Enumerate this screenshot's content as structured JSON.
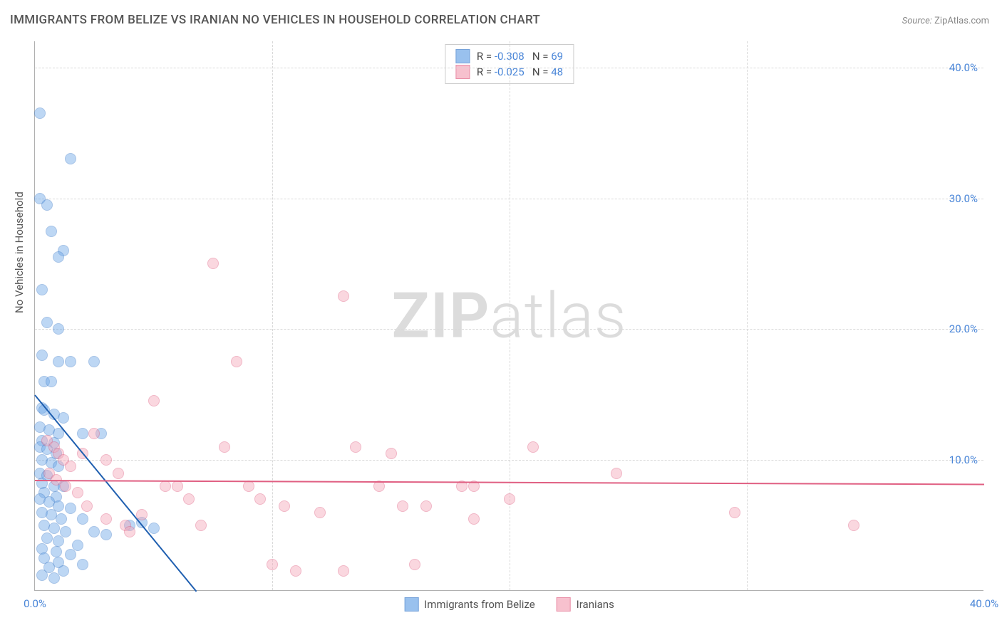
{
  "title": "IMMIGRANTS FROM BELIZE VS IRANIAN NO VEHICLES IN HOUSEHOLD CORRELATION CHART",
  "source_label": "Source:",
  "source_value": "ZipAtlas.com",
  "ylabel": "No Vehicles in Household",
  "watermark_bold": "ZIP",
  "watermark_light": "atlas",
  "chart": {
    "type": "scatter",
    "background_color": "#ffffff",
    "grid_color": "#d8d8d8",
    "axis_color": "#b0b0b0",
    "tick_color": "#4a86d8",
    "xlim": [
      0,
      40
    ],
    "ylim": [
      0,
      42
    ],
    "xtick_step": 10,
    "ytick_step": 10,
    "xticks": [
      "0.0%",
      "40.0%"
    ],
    "yticks": [
      "10.0%",
      "20.0%",
      "30.0%",
      "40.0%"
    ],
    "marker_radius": 8,
    "marker_opacity": 0.45,
    "marker_stroke_opacity": 0.7,
    "series": [
      {
        "name": "Immigrants from Belize",
        "color": "#6fa8e8",
        "stroke": "#3d7cc9",
        "trend_color": "#1f5fb0",
        "R": "-0.308",
        "N": "69",
        "trend": {
          "x1": 0,
          "y1": 15.0,
          "x2": 6.8,
          "y2": 0
        },
        "points": [
          [
            0.2,
            36.5
          ],
          [
            1.5,
            33.0
          ],
          [
            0.2,
            30.0
          ],
          [
            0.5,
            29.5
          ],
          [
            0.7,
            27.5
          ],
          [
            1.2,
            26.0
          ],
          [
            1.0,
            25.5
          ],
          [
            0.3,
            23.0
          ],
          [
            0.5,
            20.5
          ],
          [
            1.0,
            20.0
          ],
          [
            0.3,
            18.0
          ],
          [
            1.0,
            17.5
          ],
          [
            1.5,
            17.5
          ],
          [
            2.5,
            17.5
          ],
          [
            0.4,
            16.0
          ],
          [
            0.7,
            16.0
          ],
          [
            0.3,
            14.0
          ],
          [
            0.4,
            13.8
          ],
          [
            0.8,
            13.5
          ],
          [
            1.2,
            13.2
          ],
          [
            0.2,
            12.5
          ],
          [
            0.6,
            12.3
          ],
          [
            1.0,
            12.0
          ],
          [
            2.0,
            12.0
          ],
          [
            2.8,
            12.0
          ],
          [
            0.3,
            11.5
          ],
          [
            0.8,
            11.3
          ],
          [
            0.2,
            11.0
          ],
          [
            0.5,
            10.8
          ],
          [
            0.9,
            10.5
          ],
          [
            0.3,
            10.0
          ],
          [
            0.7,
            9.8
          ],
          [
            1.0,
            9.5
          ],
          [
            0.2,
            9.0
          ],
          [
            0.5,
            8.8
          ],
          [
            0.3,
            8.2
          ],
          [
            0.8,
            8.0
          ],
          [
            1.2,
            8.0
          ],
          [
            0.4,
            7.5
          ],
          [
            0.9,
            7.2
          ],
          [
            0.2,
            7.0
          ],
          [
            0.6,
            6.8
          ],
          [
            1.0,
            6.5
          ],
          [
            1.5,
            6.3
          ],
          [
            0.3,
            6.0
          ],
          [
            0.7,
            5.8
          ],
          [
            1.1,
            5.5
          ],
          [
            2.0,
            5.5
          ],
          [
            0.4,
            5.0
          ],
          [
            0.8,
            4.8
          ],
          [
            1.3,
            4.5
          ],
          [
            2.5,
            4.5
          ],
          [
            3.0,
            4.3
          ],
          [
            0.5,
            4.0
          ],
          [
            1.0,
            3.8
          ],
          [
            1.8,
            3.5
          ],
          [
            0.3,
            3.2
          ],
          [
            0.9,
            3.0
          ],
          [
            1.5,
            2.8
          ],
          [
            0.4,
            2.5
          ],
          [
            1.0,
            2.2
          ],
          [
            2.0,
            2.0
          ],
          [
            0.6,
            1.8
          ],
          [
            1.2,
            1.5
          ],
          [
            0.3,
            1.2
          ],
          [
            0.8,
            1.0
          ],
          [
            4.0,
            5.0
          ],
          [
            4.5,
            5.2
          ],
          [
            5.0,
            4.8
          ]
        ]
      },
      {
        "name": "Iranians",
        "color": "#f4a8ba",
        "stroke": "#e05f82",
        "trend_color": "#e05f82",
        "R": "-0.025",
        "N": "48",
        "trend": {
          "x1": 0,
          "y1": 8.5,
          "x2": 40,
          "y2": 8.2
        },
        "points": [
          [
            0.5,
            11.5
          ],
          [
            0.8,
            11.0
          ],
          [
            1.0,
            10.5
          ],
          [
            1.2,
            10.0
          ],
          [
            1.5,
            9.5
          ],
          [
            0.6,
            9.0
          ],
          [
            0.9,
            8.5
          ],
          [
            1.3,
            8.0
          ],
          [
            2.5,
            12.0
          ],
          [
            2.0,
            10.5
          ],
          [
            3.0,
            10.0
          ],
          [
            3.5,
            9.0
          ],
          [
            3.0,
            5.5
          ],
          [
            3.8,
            5.0
          ],
          [
            4.0,
            4.5
          ],
          [
            4.5,
            5.8
          ],
          [
            5.0,
            14.5
          ],
          [
            5.5,
            8.0
          ],
          [
            6.0,
            8.0
          ],
          [
            6.5,
            7.0
          ],
          [
            7.0,
            5.0
          ],
          [
            7.5,
            25.0
          ],
          [
            8.0,
            11.0
          ],
          [
            8.5,
            17.5
          ],
          [
            9.0,
            8.0
          ],
          [
            9.5,
            7.0
          ],
          [
            10.0,
            2.0
          ],
          [
            10.5,
            6.5
          ],
          [
            11.0,
            1.5
          ],
          [
            12.0,
            6.0
          ],
          [
            13.0,
            22.5
          ],
          [
            13.0,
            1.5
          ],
          [
            13.5,
            11.0
          ],
          [
            14.5,
            8.0
          ],
          [
            15.0,
            10.5
          ],
          [
            15.5,
            6.5
          ],
          [
            16.0,
            2.0
          ],
          [
            16.5,
            6.5
          ],
          [
            18.0,
            8.0
          ],
          [
            18.5,
            8.0
          ],
          [
            18.5,
            5.5
          ],
          [
            20.0,
            7.0
          ],
          [
            21.0,
            11.0
          ],
          [
            24.5,
            9.0
          ],
          [
            29.5,
            6.0
          ],
          [
            34.5,
            5.0
          ],
          [
            1.8,
            7.5
          ],
          [
            2.2,
            6.5
          ]
        ]
      }
    ]
  }
}
